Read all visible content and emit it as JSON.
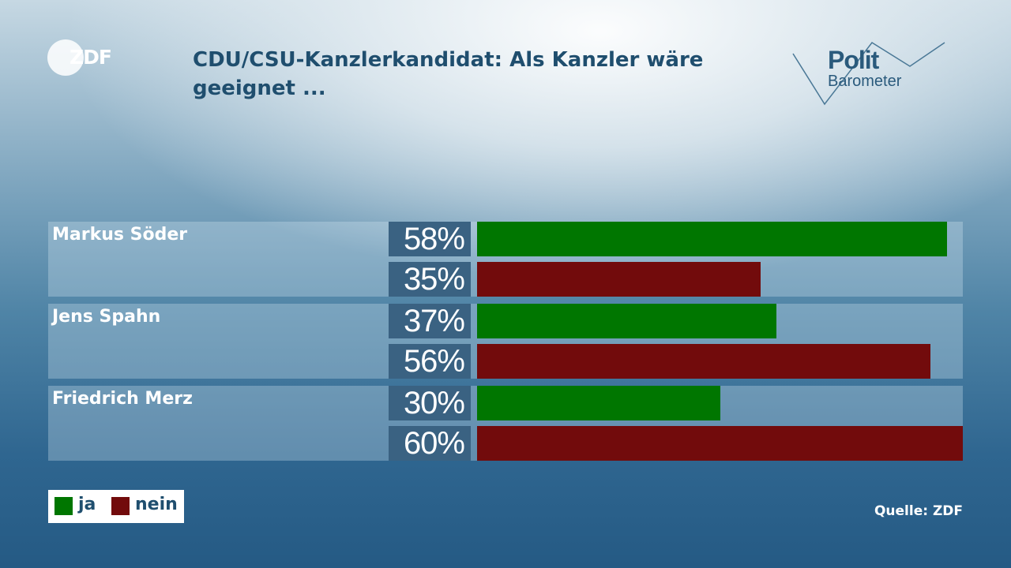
{
  "brand": {
    "logo_text": "ZDF",
    "barometer_line1": "Polit",
    "barometer_line2": "Barometer"
  },
  "colors": {
    "ja": "#007600",
    "nein": "#720b0c",
    "title": "#1f4e6e"
  },
  "chart_data": {
    "type": "bar",
    "title": "CDU/CSU-Kanzlerkandidat: Als Kanzler wäre geeignet ...",
    "categories": [
      "Markus Söder",
      "Jens Spahn",
      "Friedrich Merz"
    ],
    "series": [
      {
        "name": "ja",
        "values": [
          58,
          37,
          30
        ]
      },
      {
        "name": "nein",
        "values": [
          35,
          56,
          60
        ]
      }
    ],
    "unit": "%",
    "xlim": [
      0,
      60
    ],
    "legend_position": "bottom-left",
    "source": "Quelle: ZDF"
  }
}
